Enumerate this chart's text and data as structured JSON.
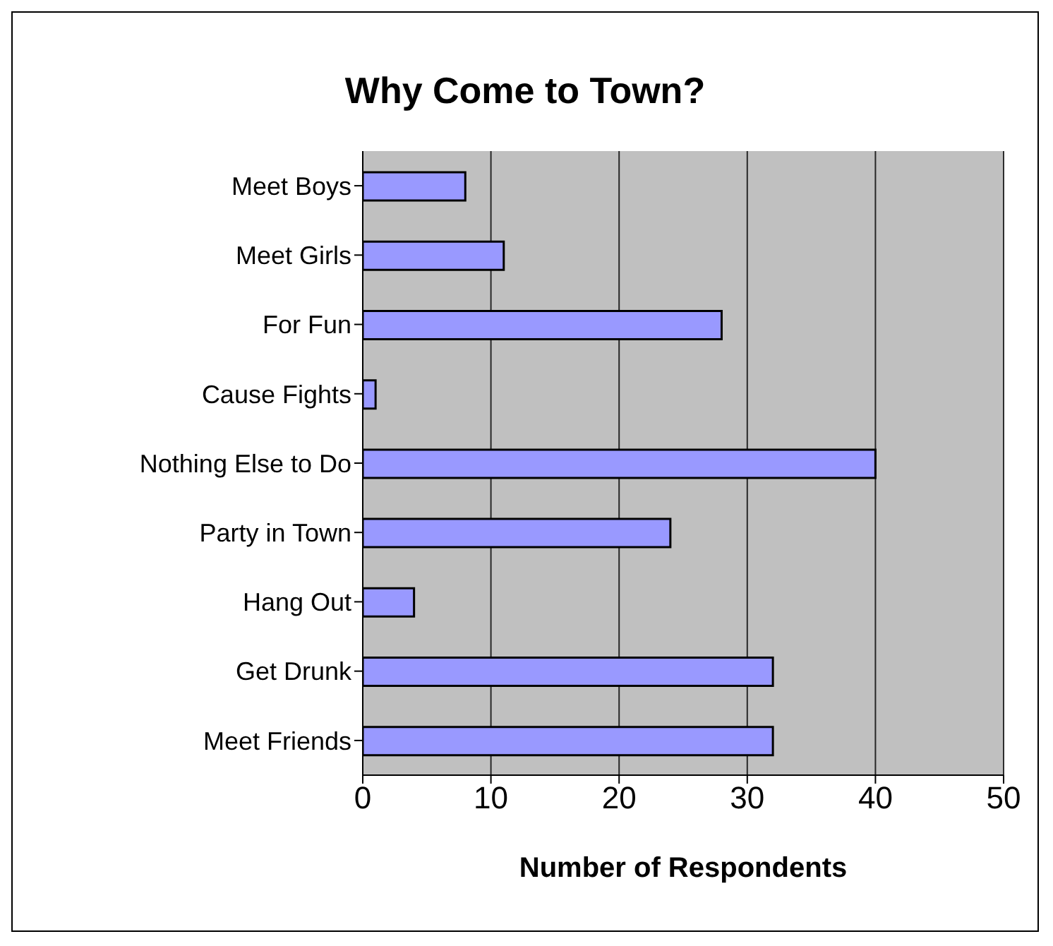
{
  "chart_data": {
    "type": "bar",
    "orientation": "horizontal",
    "title": "Why Come to Town?",
    "xlabel": "Number of Respondents",
    "categories": [
      "Meet Boys",
      "Meet Girls",
      "For Fun",
      "Cause Fights",
      "Nothing Else to Do",
      "Party in Town",
      "Hang Out",
      "Get Drunk",
      "Meet Friends"
    ],
    "values": [
      8,
      11,
      28,
      1,
      40,
      24,
      4,
      32,
      32
    ],
    "color": "#9999ff",
    "xlim": [
      0,
      50
    ],
    "xticks": [
      0,
      10,
      20,
      30,
      40,
      50
    ],
    "grid": "x"
  }
}
